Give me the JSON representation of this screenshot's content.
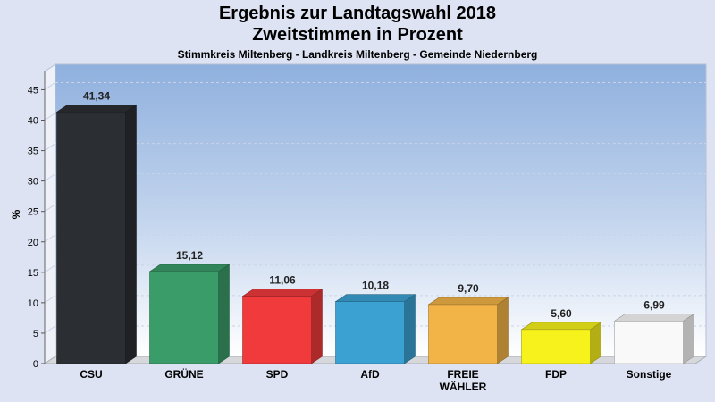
{
  "chart_data": {
    "type": "bar",
    "title": "Ergebnis zur Landtagswahl 2018",
    "subtitle": "Zweitstimmen in Prozent",
    "subtitle2": "Stimmkreis Miltenberg - Landkreis Miltenberg - Gemeinde Niedernberg",
    "ylabel": "%",
    "ylim": [
      0,
      48
    ],
    "yticks": [
      0,
      5,
      10,
      15,
      20,
      25,
      30,
      35,
      40,
      45
    ],
    "grid": true,
    "categories": [
      "CSU",
      "GRÜNE",
      "SPD",
      "AfD",
      "FREIE WÄHLER",
      "FDP",
      "Sonstige"
    ],
    "category_lines": [
      [
        "CSU"
      ],
      [
        "GRÜNE"
      ],
      [
        "SPD"
      ],
      [
        "AfD"
      ],
      [
        "FREIE",
        "WÄHLER"
      ],
      [
        "FDP"
      ],
      [
        "Sonstige"
      ]
    ],
    "values": [
      41.34,
      15.12,
      11.06,
      10.18,
      9.7,
      5.6,
      6.99
    ],
    "value_labels": [
      "41,34",
      "15,12",
      "11,06",
      "10,18",
      "9,70",
      "5,60",
      "6,99"
    ],
    "colors": [
      "#2b2e33",
      "#3a9c68",
      "#f03a3c",
      "#3ba1d2",
      "#f2b347",
      "#f7f21c",
      "#f9f9f9"
    ]
  }
}
